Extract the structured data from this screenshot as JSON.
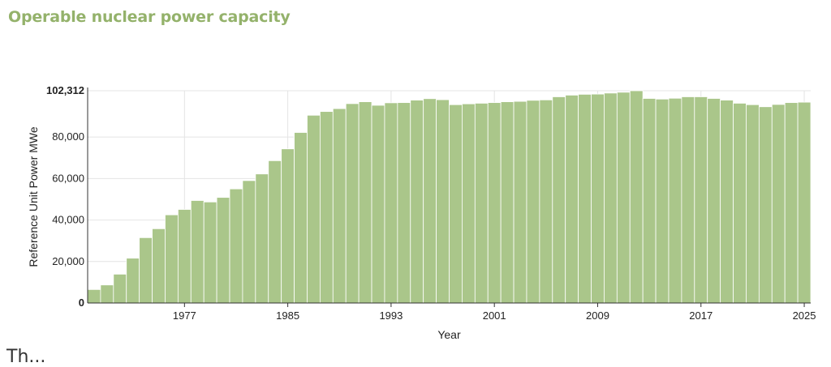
{
  "page_title": "Operable nuclear power capacity",
  "bottom_fragment": "Th...",
  "colors": {
    "bar": "#aac68a",
    "bar_stroke": "#ffffff",
    "title": "#94b26b",
    "grid": "#e4e4e4",
    "axis": "#333333",
    "text": "#222222"
  },
  "chart_data": {
    "type": "bar",
    "title": "",
    "xlabel": "Year",
    "ylabel": "Reference Unit Power MWe",
    "ylim": [
      0,
      102312
    ],
    "yticks": [
      0,
      20000,
      40000,
      60000,
      80000,
      102312
    ],
    "ytick_labels": [
      "0",
      "20,000",
      "40,000",
      "60,000",
      "80,000",
      "102,312"
    ],
    "xticks": [
      1977,
      1985,
      1993,
      2001,
      2009,
      2017,
      2025
    ],
    "grid": true,
    "categories": [
      1970,
      1971,
      1972,
      1973,
      1974,
      1975,
      1976,
      1977,
      1978,
      1979,
      1980,
      1981,
      1982,
      1983,
      1984,
      1985,
      1986,
      1987,
      1988,
      1989,
      1990,
      1991,
      1992,
      1993,
      1994,
      1995,
      1996,
      1997,
      1998,
      1999,
      2000,
      2001,
      2002,
      2003,
      2004,
      2005,
      2006,
      2007,
      2008,
      2009,
      2010,
      2011,
      2012,
      2013,
      2014,
      2015,
      2016,
      2017,
      2018,
      2019,
      2020,
      2021,
      2022,
      2023,
      2024,
      2025
    ],
    "values": [
      6500,
      8700,
      13900,
      21600,
      31500,
      35800,
      42500,
      45100,
      49400,
      48700,
      50900,
      55000,
      59000,
      62200,
      68600,
      74300,
      82200,
      90500,
      92300,
      93700,
      96100,
      97000,
      95300,
      96500,
      96600,
      97800,
      98500,
      98000,
      95600,
      96000,
      96300,
      96600,
      97000,
      97200,
      97700,
      97900,
      99400,
      100200,
      100600,
      100700,
      101200,
      101600,
      102312,
      98600,
      98300,
      98700,
      99400,
      99400,
      98600,
      97800,
      96300,
      95600,
      94600,
      95700,
      96600,
      96800
    ]
  }
}
